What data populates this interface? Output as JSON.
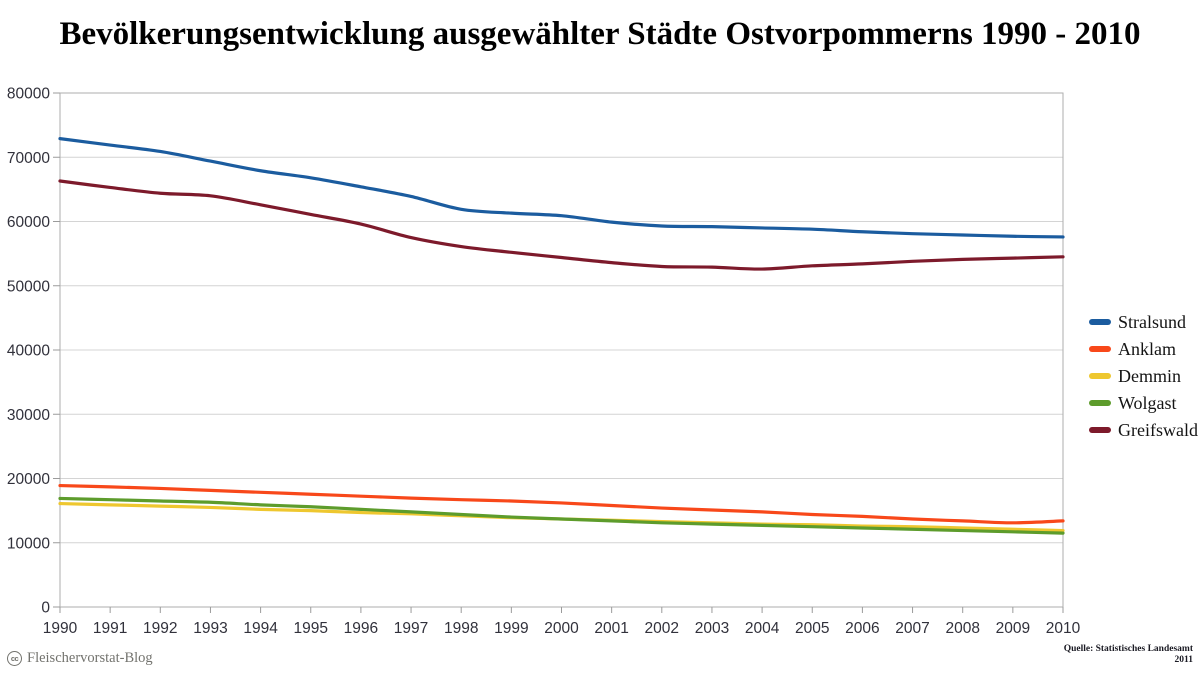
{
  "chart_data": {
    "type": "line",
    "title": "Bevölkerungsentwicklung ausgewählter Städte Ostvorpommerns 1990 - 2010",
    "categories": [
      "1990",
      "1991",
      "1992",
      "1993",
      "1994",
      "1995",
      "1996",
      "1997",
      "1998",
      "1999",
      "2000",
      "2001",
      "2002",
      "2003",
      "2004",
      "2005",
      "2006",
      "2007",
      "2008",
      "2009",
      "2010"
    ],
    "series": [
      {
        "name": "Stralsund",
        "color": "#1b5c9f",
        "values": [
          72900,
          71900,
          70900,
          69400,
          67900,
          66800,
          65400,
          63900,
          61900,
          61300,
          60900,
          59900,
          59300,
          59200,
          59000,
          58800,
          58400,
          58100,
          57900,
          57700,
          57600
        ]
      },
      {
        "name": "Anklam",
        "color": "#f8481a",
        "values": [
          18900,
          18700,
          18450,
          18150,
          17850,
          17550,
          17250,
          16950,
          16700,
          16500,
          16200,
          15800,
          15400,
          15100,
          14800,
          14400,
          14100,
          13700,
          13400,
          13100,
          13400
        ]
      },
      {
        "name": "Demmin",
        "color": "#eec72f",
        "values": [
          16100,
          15900,
          15700,
          15500,
          15200,
          15000,
          14700,
          14500,
          14200,
          13900,
          13700,
          13500,
          13300,
          13100,
          12900,
          12800,
          12600,
          12500,
          12300,
          12100,
          11900
        ]
      },
      {
        "name": "Wolgast",
        "color": "#5d9c2c",
        "values": [
          16900,
          16700,
          16500,
          16300,
          15900,
          15600,
          15200,
          14800,
          14400,
          14000,
          13700,
          13400,
          13100,
          12900,
          12700,
          12500,
          12300,
          12100,
          11900,
          11700,
          11500
        ]
      },
      {
        "name": "Greifswald",
        "color": "#7d1a2b",
        "values": [
          66300,
          65300,
          64400,
          64000,
          62600,
          61100,
          59600,
          57500,
          56100,
          55200,
          54400,
          53600,
          53000,
          52900,
          52600,
          53100,
          53400,
          53800,
          54100,
          54300,
          54500
        ]
      }
    ],
    "ylim": [
      0,
      80000
    ],
    "y_ticks": [
      0,
      10000,
      20000,
      30000,
      40000,
      50000,
      60000,
      70000,
      80000
    ],
    "grid": "horizontal",
    "legend_position": "right"
  },
  "footer": {
    "icon_glyph": "cc",
    "left_text": "Fleischervorstat-Blog",
    "source_line1": "Quelle: Statistisches Landesamt",
    "source_line2": "2011"
  },
  "colors": {
    "grid": "#d4d4d4",
    "frame": "#aeaeae",
    "tick": "#9b9b9b",
    "axis_text": "#31313b"
  }
}
